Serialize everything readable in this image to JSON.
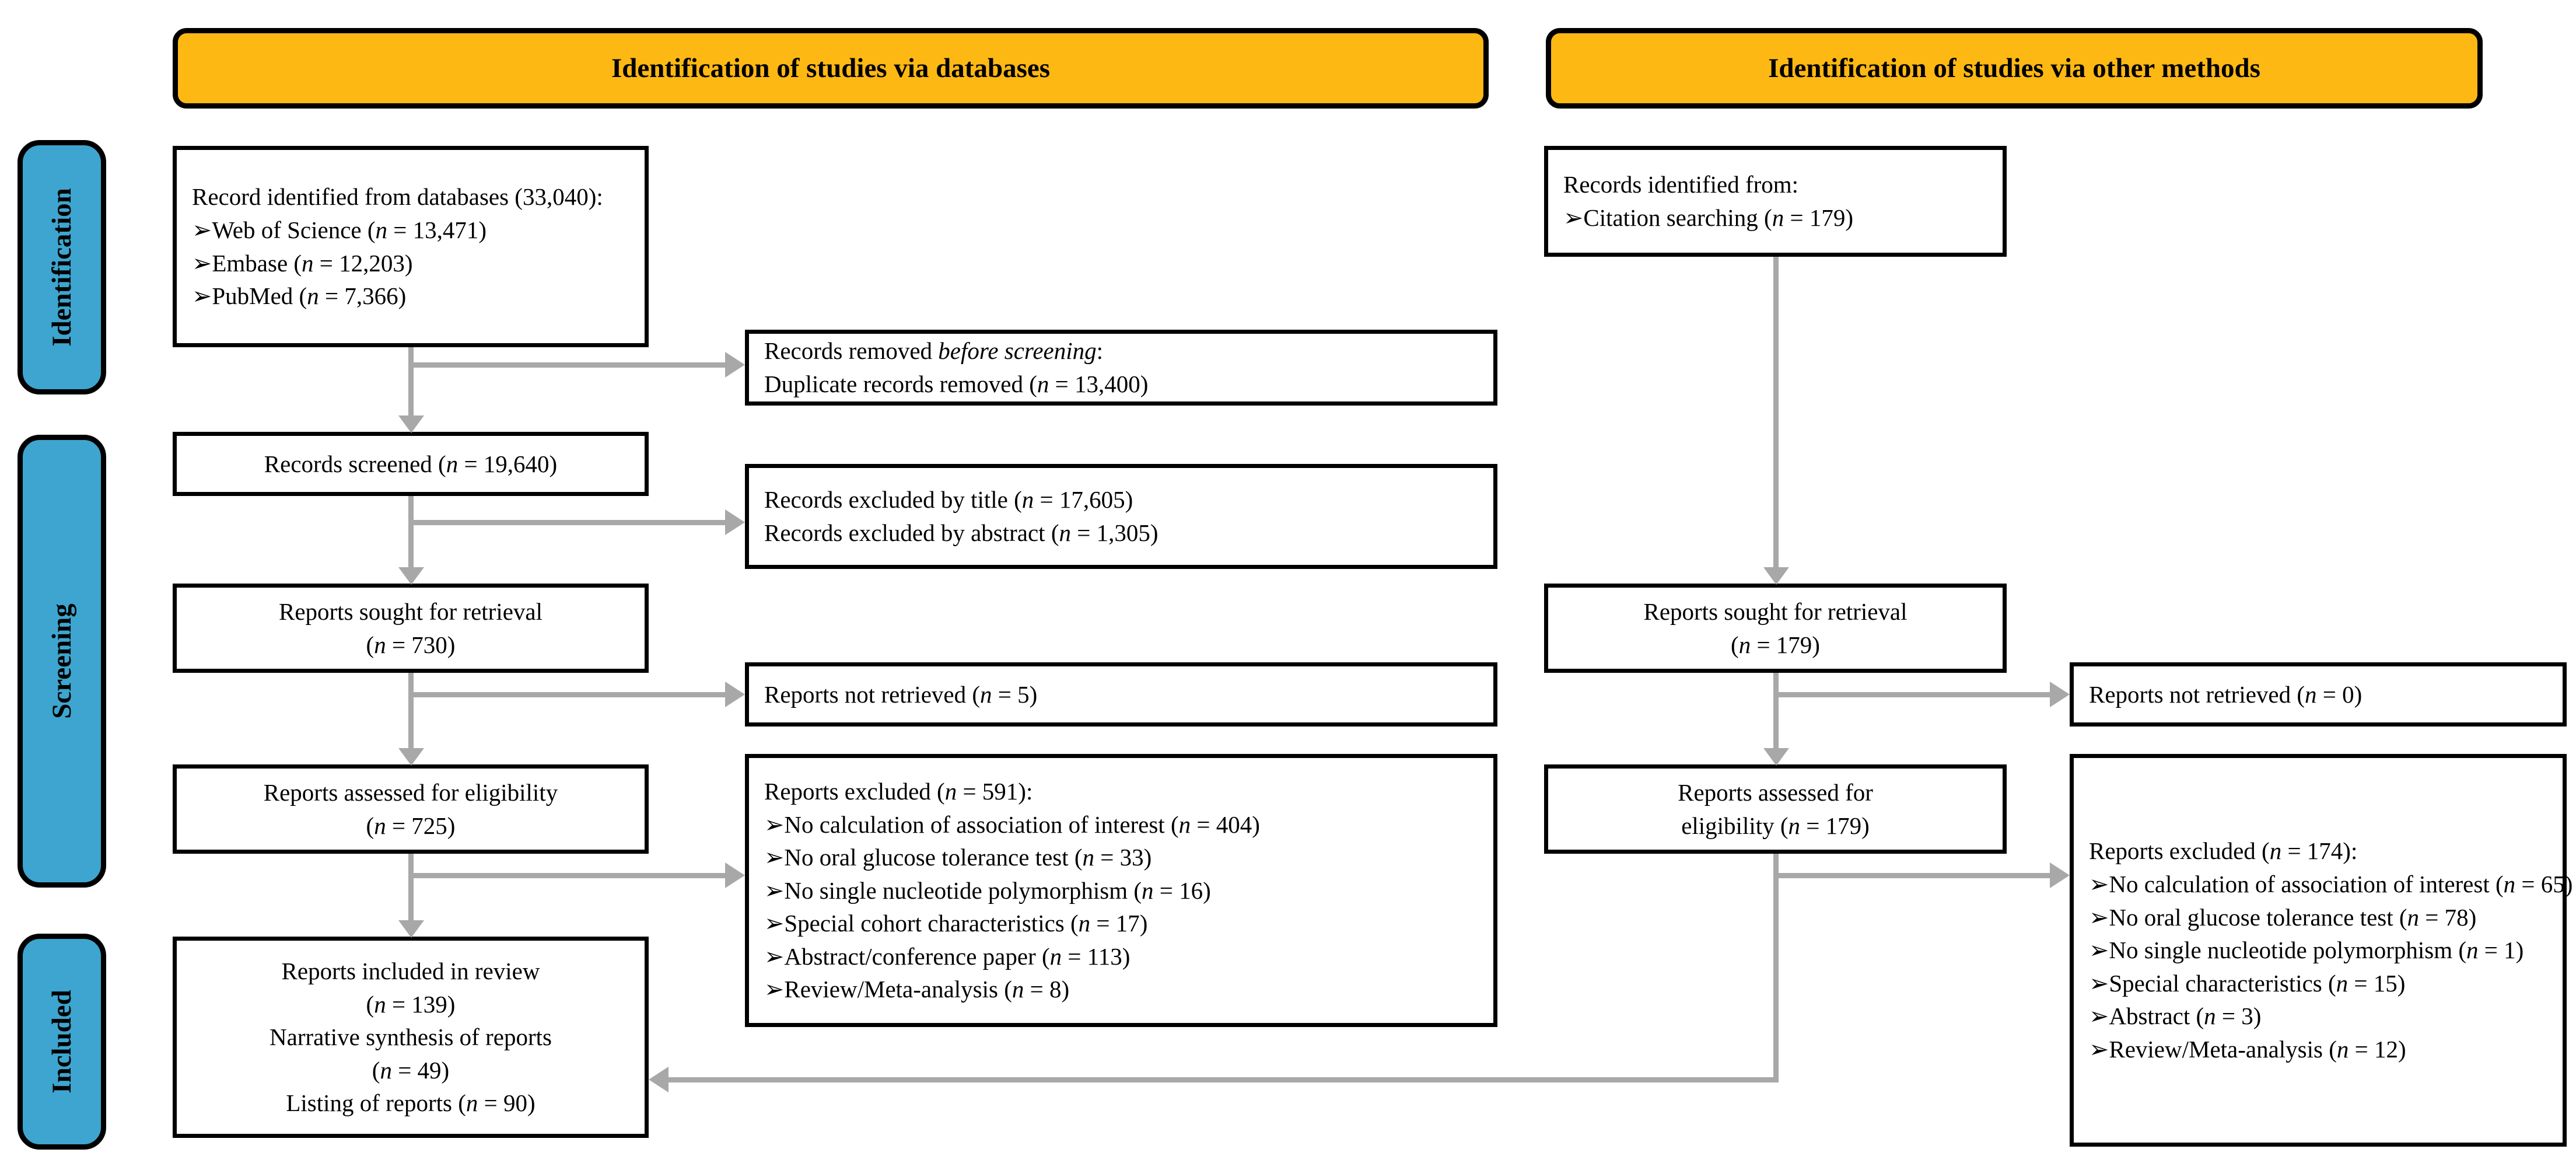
{
  "colors": {
    "header-bg": "#FDB813",
    "sidebar-bg": "#3DA5CF",
    "arrow": "#A8A8A8",
    "border": "#000000",
    "box-bg": "#FFFFFF",
    "text": "#000000"
  },
  "headers": {
    "databases": "Identification of studies via databases",
    "other_methods": "Identification of studies via other methods"
  },
  "sidebar": {
    "identification": "Identification",
    "screening": "Screening",
    "included": "Included"
  },
  "flow": {
    "db_identified": {
      "title": "Record identified from databases (33,040):",
      "items": [
        "➢Web of Science (*n* = 13,471)",
        "➢Embase (*n* = 12,203)",
        "➢PubMed (*n* = 7,366)"
      ]
    },
    "records_removed": {
      "lines": [
        "Records removed *before screening*:",
        "Duplicate records removed (*n* = 13,400)"
      ]
    },
    "records_screened": {
      "lines": [
        "Records screened (*n* = 19,640)"
      ]
    },
    "records_excluded": {
      "lines": [
        "Records excluded by title (*n* = 17,605)",
        "Records excluded by abstract (*n* = 1,305)"
      ]
    },
    "reports_sought_db": {
      "lines": [
        "Reports sought for retrieval",
        "(*n* = 730)"
      ]
    },
    "reports_not_retrieved_db": {
      "lines": [
        "Reports not retrieved (*n* = 5)"
      ]
    },
    "reports_assessed_db": {
      "lines": [
        "Reports assessed for eligibility",
        "(*n* = 725)"
      ]
    },
    "reports_excluded_db": {
      "title": "Reports excluded (*n* = 591):",
      "items": [
        "➢No calculation of association of interest (*n* = 404)",
        "➢No oral glucose tolerance test (*n* = 33)",
        "➢No single nucleotide polymorphism (*n* = 16)",
        "➢Special cohort characteristics (*n* = 17)",
        "➢Abstract/conference paper (*n* = 113)",
        "➢Review/Meta-analysis (*n* = 8)"
      ]
    },
    "included_reports": {
      "lines": [
        "Reports included in review",
        "(*n* = 139)",
        "Narrative synthesis of reports",
        "(*n* = 49)",
        "Listing of reports (*n* = 90)"
      ]
    },
    "records_identified_other": {
      "title": "Records identified from:",
      "items": [
        "➢Citation searching (*n* = 179)"
      ]
    },
    "reports_sought_other": {
      "lines": [
        "Reports sought for retrieval",
        "(*n* = 179)"
      ]
    },
    "reports_not_retrieved_other": {
      "lines": [
        "Reports not retrieved (*n* = 0)"
      ]
    },
    "reports_assessed_other": {
      "lines": [
        "Reports assessed for",
        "eligibility (*n* = 179)"
      ]
    },
    "reports_excluded_other": {
      "title": "Reports excluded (*n* = 174):",
      "items": [
        "➢No calculation of association of interest (*n* = 65)",
        "➢No oral glucose tolerance test (*n* = 78)",
        "➢No single nucleotide polymorphism (*n* = 1)",
        "➢Special characteristics (*n* = 15)",
        "➢Abstract (*n* = 3)",
        "➢Review/Meta-analysis (*n* = 12)"
      ]
    }
  }
}
